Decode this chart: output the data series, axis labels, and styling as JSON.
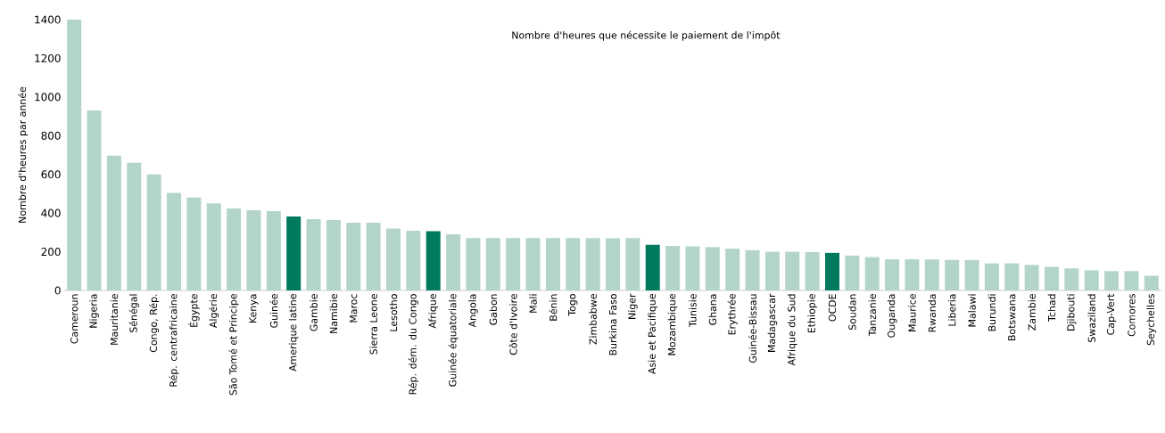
{
  "chart_data": {
    "type": "bar",
    "title": "Nombre d'heures que nécessite le paiement de l'impôt",
    "ylabel": "Nombre d'heures par année",
    "categories": [
      "Cameroun",
      "Nigeria",
      "Mauritanie",
      "Sénégal",
      "Congo, Rép.",
      "Rép. centrafricaine",
      "Égypte",
      "Algérie",
      "São Tomé et Principe",
      "Kenya",
      "Guinée",
      "Amerique latine",
      "Gambie",
      "Namibie",
      "Maroc",
      "Sierra Leone",
      "Lesotho",
      "Rép. dém. du Congo",
      "Afrique",
      "Guinée équatoriale",
      "Angola",
      "Gabon",
      "Côte d'Ivoire",
      "Mali",
      "Bénin",
      "Togo",
      "Zimbabwe",
      "Burkina Faso",
      "Niger",
      "Asie et Pacifique",
      "Mozambique",
      "Tunisie",
      "Ghana",
      "Erythrée",
      "Guinée-Bissau",
      "Madagascar",
      "Afrique du Sud",
      "Ethiopie",
      "OCDE",
      "Soudan",
      "Tanzanie",
      "Ouganda",
      "Maurice",
      "Rwanda",
      "Liberia",
      "Malawi",
      "Burundi",
      "Botswana",
      "Zambie",
      "Tchad",
      "Djibouti",
      "Swaziland",
      "Cap-Vert",
      "Comores",
      "Seychelles"
    ],
    "values": [
      1400,
      930,
      696,
      660,
      600,
      504,
      480,
      450,
      424,
      414,
      410,
      382,
      368,
      364,
      350,
      350,
      320,
      308,
      306,
      290,
      270,
      270,
      270,
      270,
      270,
      270,
      270,
      270,
      270,
      236,
      230,
      228,
      224,
      216,
      208,
      200,
      200,
      198,
      194,
      180,
      172,
      161,
      161,
      160,
      158,
      157,
      140,
      140,
      132,
      122,
      114,
      104,
      100,
      100,
      76
    ],
    "colors": [
      "#b3d4c9",
      "#b3d4c9",
      "#b3d4c9",
      "#b3d4c9",
      "#b3d4c9",
      "#b3d4c9",
      "#b3d4c9",
      "#b3d4c9",
      "#b3d4c9",
      "#b3d4c9",
      "#b3d4c9",
      "#007a5e",
      "#b3d4c9",
      "#b3d4c9",
      "#b3d4c9",
      "#b3d4c9",
      "#b3d4c9",
      "#b3d4c9",
      "#007a5e",
      "#b3d4c9",
      "#b3d4c9",
      "#b3d4c9",
      "#b3d4c9",
      "#b3d4c9",
      "#b3d4c9",
      "#b3d4c9",
      "#b3d4c9",
      "#b3d4c9",
      "#b3d4c9",
      "#007a5e",
      "#b3d4c9",
      "#b3d4c9",
      "#b3d4c9",
      "#b3d4c9",
      "#b3d4c9",
      "#b3d4c9",
      "#b3d4c9",
      "#b3d4c9",
      "#007a5e",
      "#b3d4c9",
      "#b3d4c9",
      "#b3d4c9",
      "#b3d4c9",
      "#b3d4c9",
      "#b3d4c9",
      "#b3d4c9",
      "#b3d4c9",
      "#b3d4c9",
      "#b3d4c9",
      "#b3d4c9",
      "#b3d4c9",
      "#b3d4c9",
      "#b3d4c9",
      "#b3d4c9",
      "#b3d4c9"
    ],
    "ylim": [
      0,
      1400
    ],
    "yticks": [
      0,
      200,
      400,
      600,
      800,
      1000,
      1200,
      1400
    ]
  }
}
